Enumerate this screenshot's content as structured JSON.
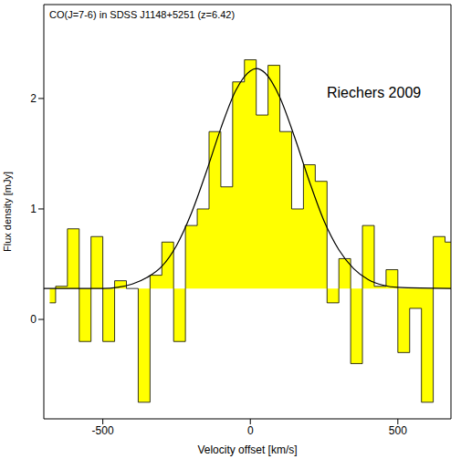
{
  "chart_data": {
    "type": "line",
    "title": "CO(J=7-6) in SDSS J1148+5251 (z=6.42)",
    "annotations": [
      "Riechers 2009"
    ],
    "x_label": "Velocity offset [km/s]",
    "y_label": "Flux density [mJy]",
    "xlim": [
      -700,
      680
    ],
    "ylim": [
      -0.9,
      2.85
    ],
    "xticks": [
      -500,
      0,
      500
    ],
    "yticks": [
      0,
      1,
      2
    ],
    "baseline": 0.28,
    "series": [
      {
        "type": "step",
        "color": "#ffff00",
        "x": [
          -680,
          -640,
          -600,
          -560,
          -520,
          -480,
          -440,
          -400,
          -360,
          -320,
          -280,
          -240,
          -200,
          -160,
          -120,
          -80,
          -40,
          0,
          40,
          80,
          120,
          160,
          200,
          240,
          280,
          320,
          360,
          400,
          440,
          480,
          520,
          560,
          600,
          640,
          680
        ],
        "values": [
          0.15,
          0.3,
          0.82,
          -0.2,
          0.75,
          -0.2,
          0.35,
          0.28,
          -0.75,
          0.4,
          0.7,
          -0.2,
          0.85,
          1.0,
          1.7,
          1.2,
          2.15,
          2.35,
          1.85,
          2.3,
          1.7,
          1.0,
          1.4,
          1.25,
          0.15,
          0.55,
          -0.4,
          0.85,
          0.3,
          0.45,
          -0.3,
          0.1,
          -0.75,
          0.75,
          0.7
        ]
      },
      {
        "type": "line",
        "color": "#000000",
        "x": [
          -700,
          -500,
          -450,
          -400,
          -350,
          -300,
          -250,
          -200,
          -150,
          -100,
          -50,
          0,
          20,
          50,
          100,
          150,
          200,
          250,
          300,
          350,
          400,
          450,
          500,
          680
        ],
        "values": [
          0.28,
          0.28,
          0.29,
          0.32,
          0.38,
          0.48,
          0.67,
          0.96,
          1.33,
          1.73,
          2.07,
          2.25,
          2.27,
          2.23,
          2.01,
          1.65,
          1.25,
          0.89,
          0.63,
          0.46,
          0.36,
          0.31,
          0.29,
          0.28
        ]
      }
    ]
  }
}
